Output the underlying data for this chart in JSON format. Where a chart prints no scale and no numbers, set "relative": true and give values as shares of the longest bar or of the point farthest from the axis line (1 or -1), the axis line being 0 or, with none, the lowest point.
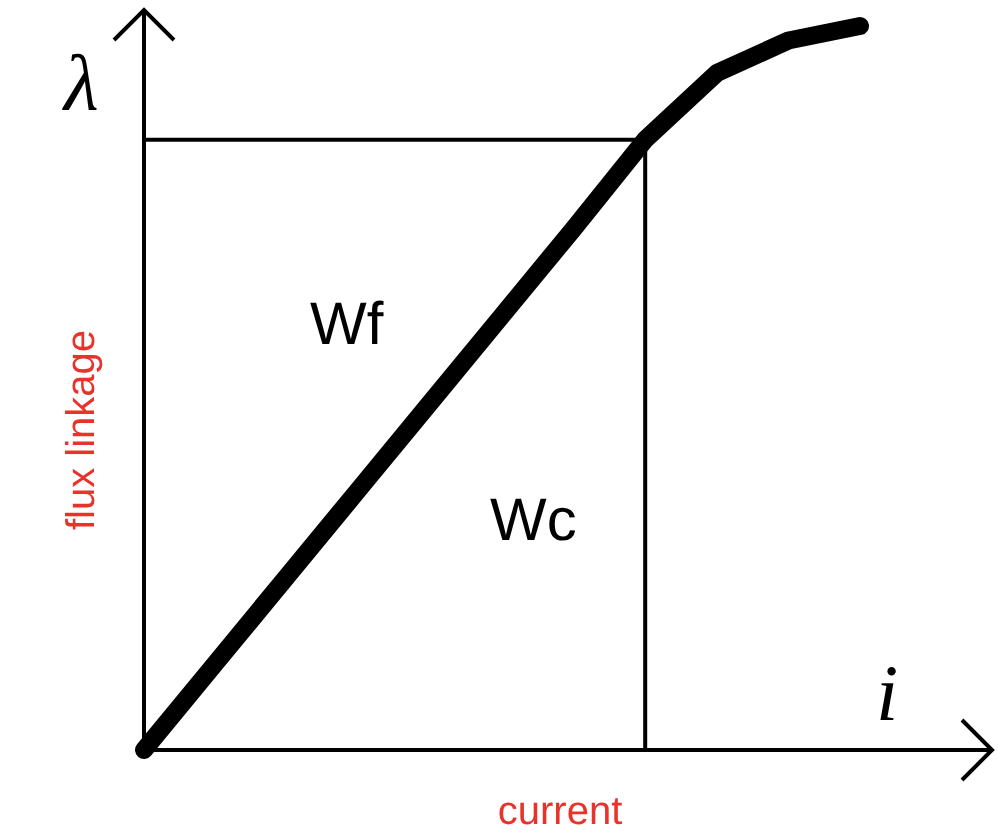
{
  "chart_data": {
    "type": "line",
    "relative": true,
    "xlabel": "current",
    "ylabel": "flux linkage",
    "categories": [
      null,
      null,
      null,
      null,
      null,
      null,
      null,
      null,
      null,
      null,
      null
    ],
    "series": [
      {
        "color": "#000000",
        "values": [
          0,
          0.12,
          0.24,
          0.36,
          0.48,
          0.6,
          0.72,
          0.843,
          0.935,
          0.98,
          1
        ]
      }
    ],
    "ref_lines": [
      {
        "axis": "y",
        "value": 0.843,
        "color": "#000000"
      }
    ],
    "annotations": [
      "λ",
      "i",
      "Wf",
      "Wc"
    ]
  }
}
